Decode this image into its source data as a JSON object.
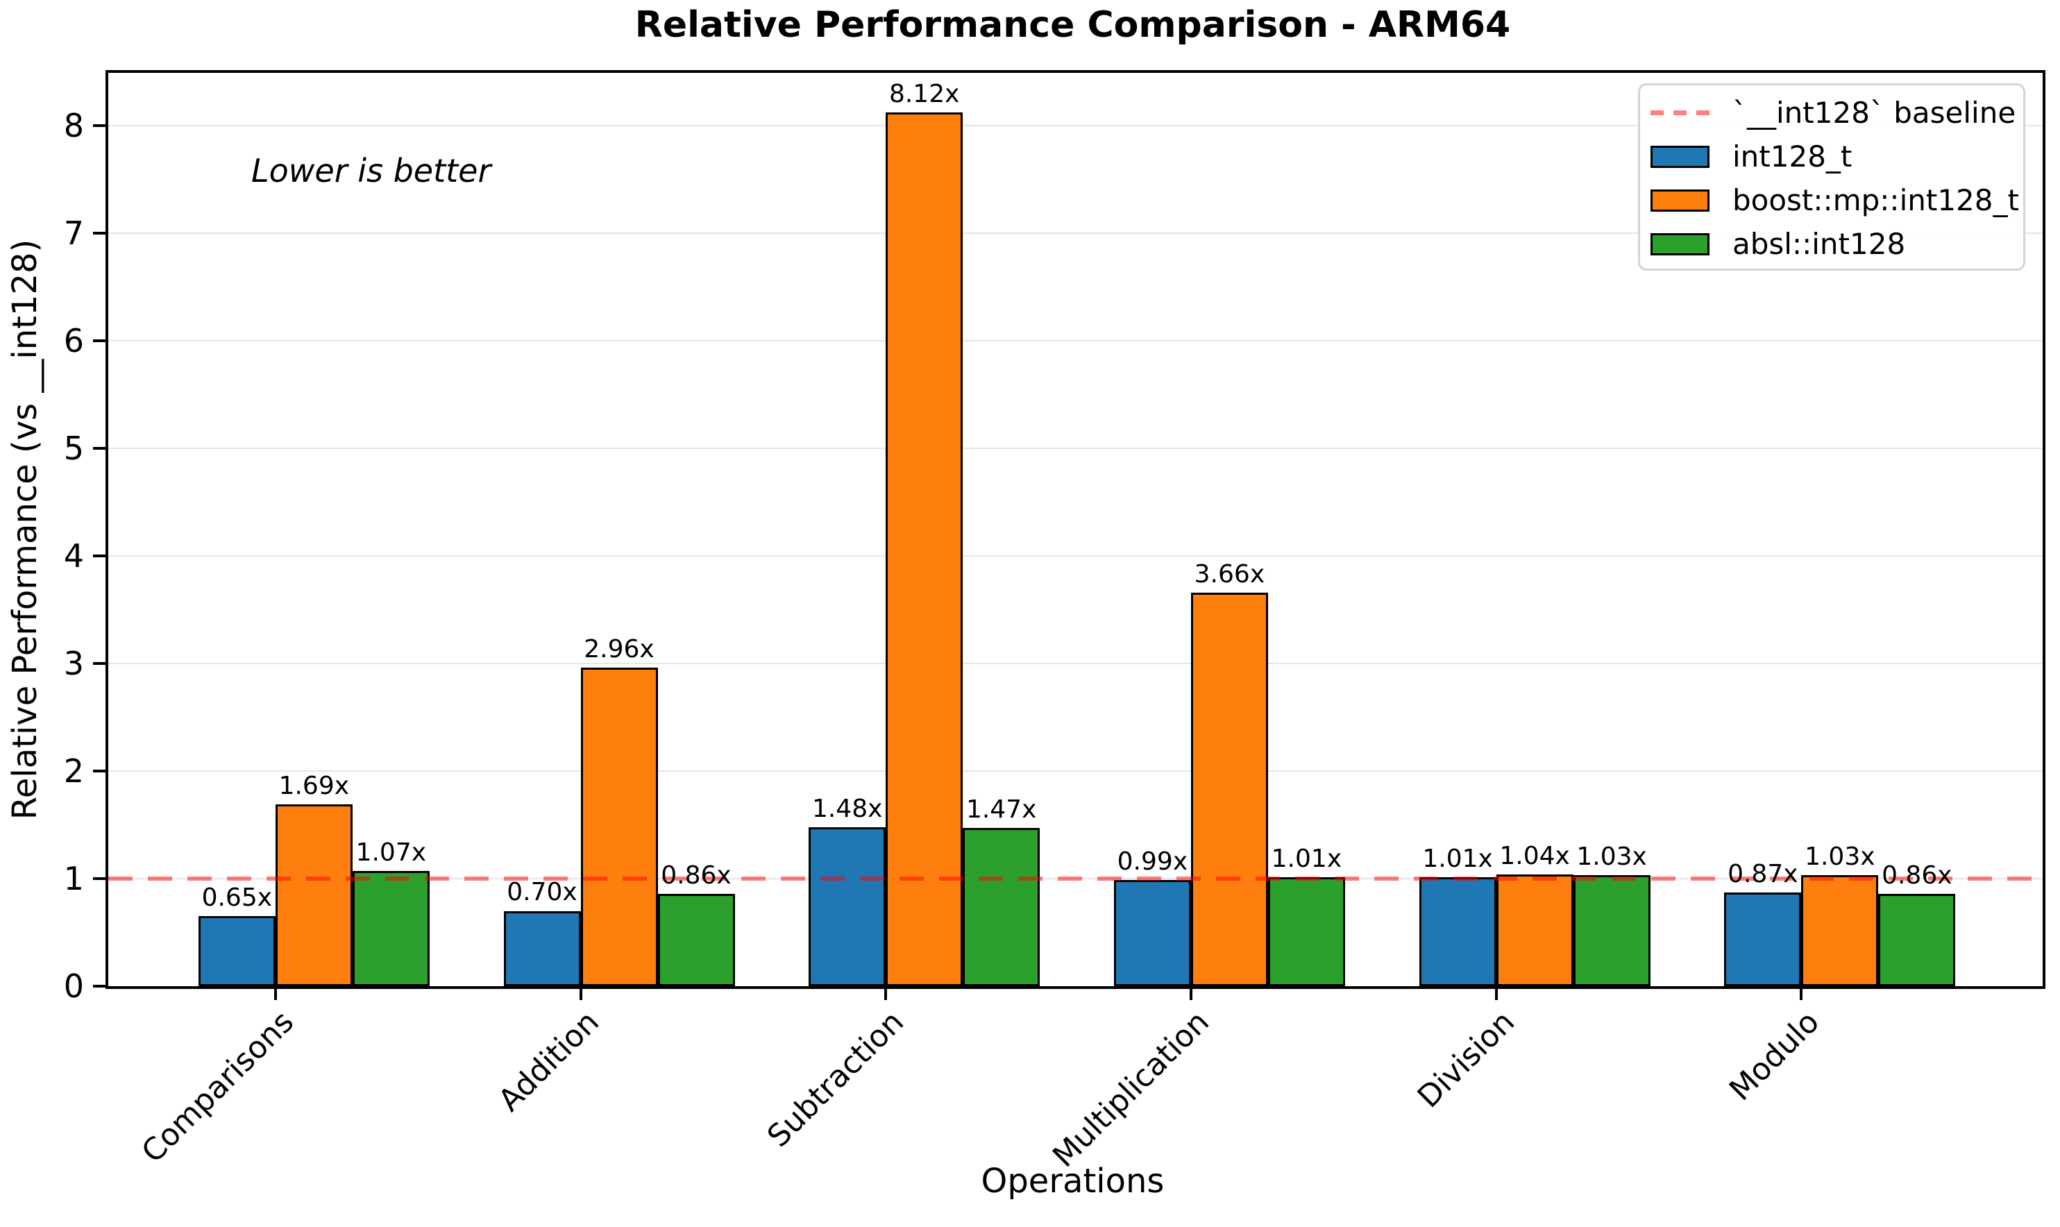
{
  "chart_data": {
    "type": "bar",
    "title": "Relative Performance Comparison - ARM64",
    "xlabel": "Operations",
    "ylabel": "Relative Performance (vs __int128)",
    "annotation": "Lower is better",
    "categories": [
      "Comparisons",
      "Addition",
      "Subtraction",
      "Multiplication",
      "Division",
      "Modulo"
    ],
    "series": [
      {
        "name": "int128_t",
        "color": "#1f77b4",
        "values": [
          0.65,
          0.7,
          1.48,
          0.99,
          1.01,
          0.87
        ],
        "labels": [
          "0.65x",
          "0.70x",
          "1.48x",
          "0.99x",
          "1.01x",
          "0.87x"
        ]
      },
      {
        "name": "boost::mp::int128_t",
        "color": "#ff7f0e",
        "values": [
          1.69,
          2.96,
          8.12,
          3.66,
          1.04,
          1.03
        ],
        "labels": [
          "1.69x",
          "2.96x",
          "8.12x",
          "3.66x",
          "1.04x",
          "1.03x"
        ]
      },
      {
        "name": "absl::int128",
        "color": "#2ca02c",
        "values": [
          1.07,
          0.86,
          1.47,
          1.01,
          1.03,
          0.86
        ],
        "labels": [
          "1.07x",
          "0.86x",
          "1.47x",
          "1.01x",
          "1.03x",
          "0.86x"
        ]
      }
    ],
    "baseline": {
      "value": 1.0,
      "label": "`__int128` baseline",
      "color": "#ff8080"
    },
    "ylim": [
      0,
      8.49
    ],
    "y_ticks": [
      0,
      1,
      2,
      3,
      4,
      5,
      6,
      7,
      8
    ],
    "grid": true,
    "legend_position": "top-right",
    "lower_is_better": true
  }
}
